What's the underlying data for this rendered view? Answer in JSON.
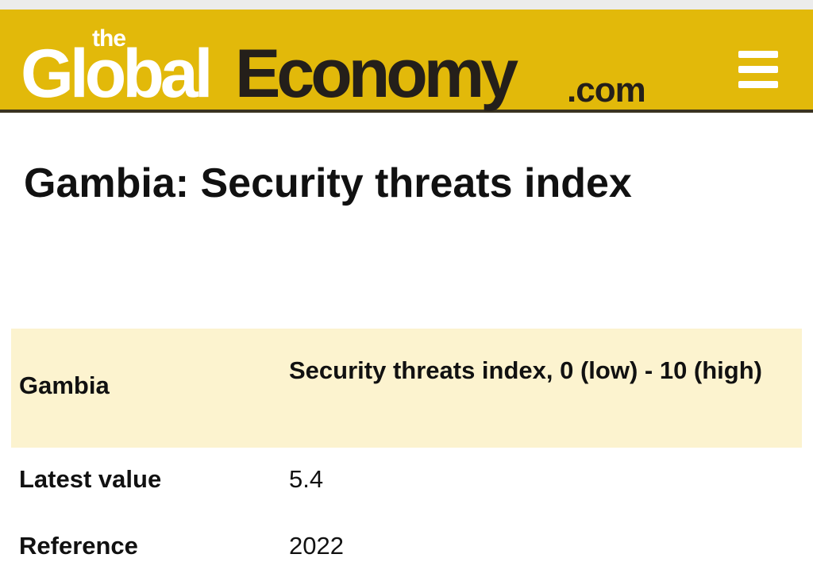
{
  "header": {
    "logo": {
      "the": "the",
      "global": "Global",
      "economy": "Economy",
      "com": ".com"
    },
    "menu_icon": "hamburger-menu-icon",
    "background_color": "#e2b90a"
  },
  "page": {
    "title": "Gambia: Security threats index"
  },
  "table": {
    "header": {
      "country": "Gambia",
      "indicator": "Security threats index, 0 (low) - 10 (high)"
    },
    "rows": [
      {
        "label": "Latest value",
        "value": "5.4"
      },
      {
        "label": "Reference",
        "value": "2022"
      }
    ],
    "header_background": "#fcf3cf"
  }
}
